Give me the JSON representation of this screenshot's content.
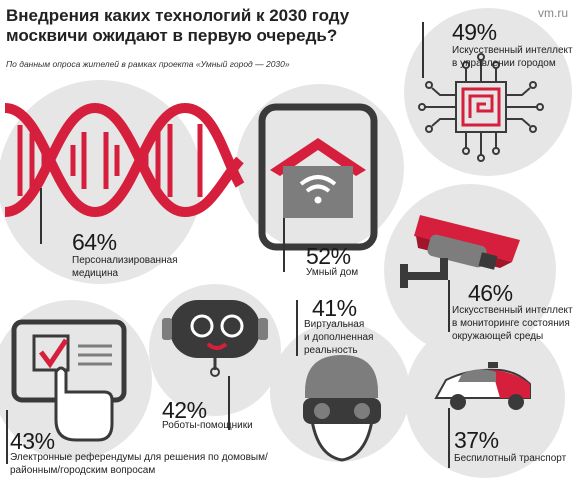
{
  "header": {
    "title": "Внедрения каких технологий к 2030 году\nмосквичи ожидают в первую очередь?",
    "source": "По данным опроса жителей в рамках проекта «Умный город — 2030»",
    "logo": "vm.ru"
  },
  "chart_data": {
    "type": "infographic",
    "categories": [
      {
        "id": "medicine",
        "value": 64,
        "label_value": "64%",
        "label": "Персонализированная\nмедицина"
      },
      {
        "id": "smarthome",
        "value": 52,
        "label_value": "52%",
        "label": "Умный дом"
      },
      {
        "id": "ai_city",
        "value": 49,
        "label_value": "49%",
        "label": "Искусственный интеллект\nв управлении городом"
      },
      {
        "id": "ai_env",
        "value": 46,
        "label_value": "46%",
        "label": "Искусственный интеллект\nв мониторинге состояния\nокружающей среды"
      },
      {
        "id": "robots",
        "value": 42,
        "label_value": "42%",
        "label": "Роботы-помощники"
      },
      {
        "id": "vr",
        "value": 41,
        "label_value": "41%",
        "label": "Виртуальная\nи дополненная\nреальность"
      },
      {
        "id": "referendum",
        "value": 43,
        "label_value": "43%",
        "label": "Электронные референдумы для решения по домовым/\nрайонным/городским вопросам"
      },
      {
        "id": "transport",
        "value": 37,
        "label_value": "37%",
        "label": "Беспилотный транспорт"
      }
    ]
  },
  "colors": {
    "circle": "#e6e6e6",
    "accent": "#d51f3c",
    "dark": "#3a3a3a",
    "mid": "#7d7d7d"
  }
}
